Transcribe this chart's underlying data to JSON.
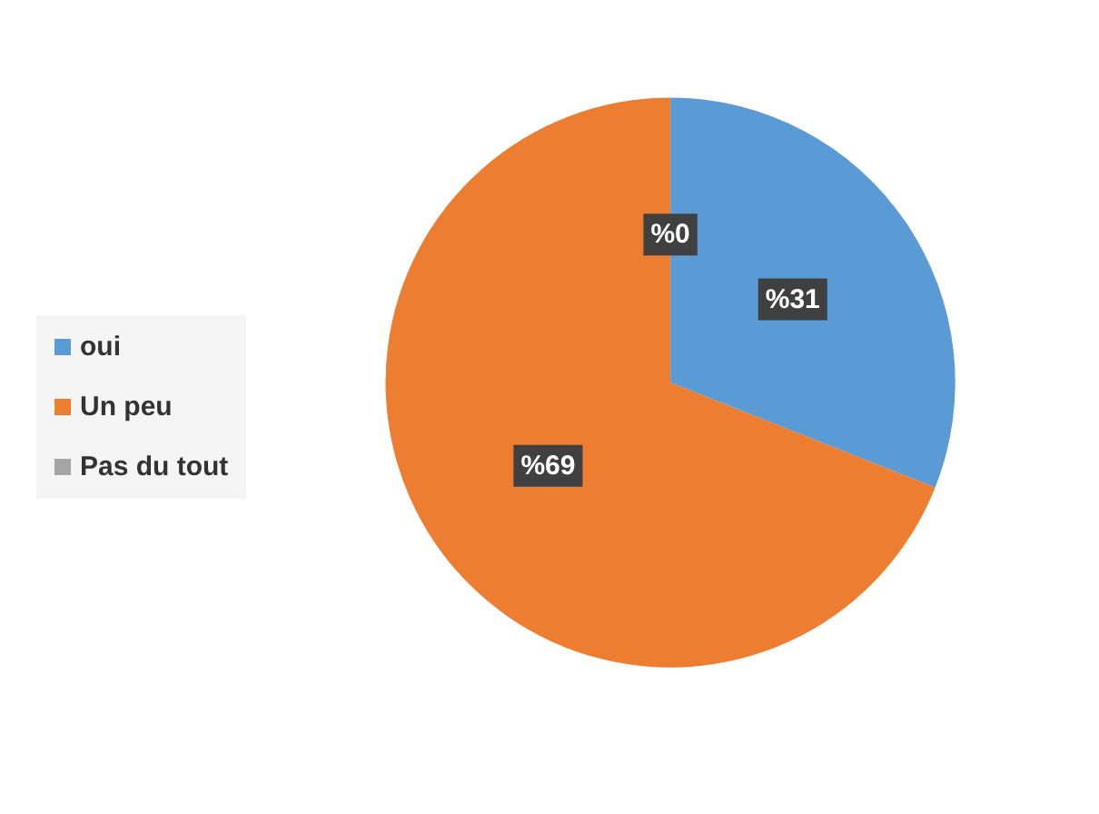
{
  "chart_data": {
    "type": "pie",
    "categories": [
      "oui",
      "Un peu",
      "Pas du tout"
    ],
    "values": [
      31,
      69,
      0
    ],
    "colors": [
      "#5b9bd5",
      "#ed7d31",
      "#a5a5a5"
    ],
    "value_labels": [
      "%31",
      "%69",
      "%0"
    ],
    "legend": "left"
  }
}
